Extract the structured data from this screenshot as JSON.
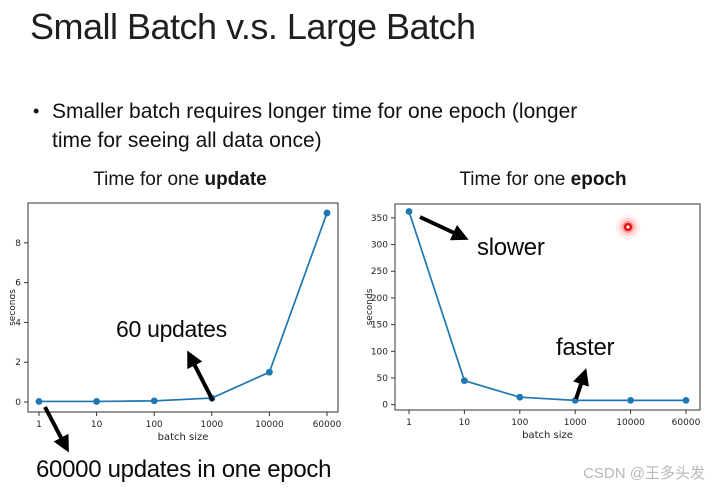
{
  "slide": {
    "title": "Small Batch v.s. Large Batch",
    "bullet_marker": "•",
    "bullet_text": "Smaller batch requires longer time for one epoch (longer time for seeing all data once)",
    "watermark": "CSDN @王多头发"
  },
  "annotations": {
    "updates_60": "60 updates",
    "updates_60000": "60000 updates in one epoch",
    "slower": "slower",
    "faster": "faster"
  },
  "colors": {
    "line": "#1f77b4",
    "axis": "#333333",
    "tick_text": "#222222",
    "arrow": "#000000",
    "laser": "#dd1313",
    "watermark": "#b7b7bc"
  },
  "chart_data": [
    {
      "type": "line",
      "title_prefix": "Time for one ",
      "title_bold": "update",
      "xlabel": "batch size",
      "ylabel": "seconds",
      "x_scale": "log (ticks evenly spaced)",
      "x": [
        1,
        10,
        100,
        1000,
        10000,
        60000
      ],
      "x_tick_labels": [
        "1",
        "10",
        "100",
        "1000",
        "10000",
        "60000"
      ],
      "y": [
        0.03,
        0.03,
        0.06,
        0.2,
        1.5,
        9.5
      ],
      "y_ticks": [
        0,
        2,
        4,
        6,
        8
      ],
      "ylim": [
        -0.5,
        10
      ],
      "grid": false,
      "legend": "none"
    },
    {
      "type": "line",
      "title_prefix": "Time for one ",
      "title_bold": "epoch",
      "xlabel": "batch size",
      "ylabel": "seconds",
      "x_scale": "log (ticks evenly spaced)",
      "x": [
        1,
        10,
        100,
        1000,
        10000,
        60000
      ],
      "x_tick_labels": [
        "1",
        "10",
        "100",
        "1000",
        "10000",
        "60000"
      ],
      "y": [
        362,
        45,
        14,
        8,
        8,
        8
      ],
      "y_ticks": [
        0,
        50,
        100,
        150,
        200,
        250,
        300,
        350
      ],
      "ylim": [
        -10,
        376
      ],
      "grid": false,
      "legend": "none"
    }
  ]
}
